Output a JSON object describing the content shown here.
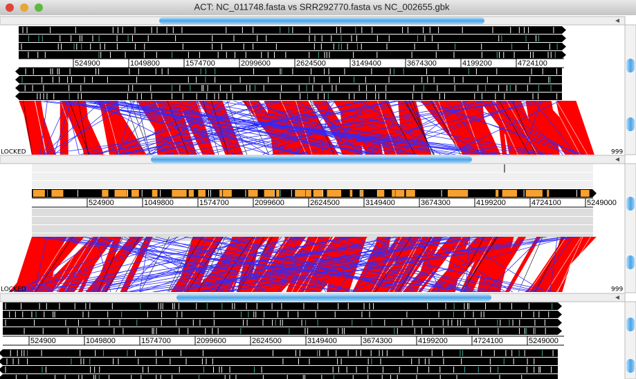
{
  "window": {
    "title": "ACT: NC_011748.fasta vs SRR292770.fasta vs NC_002655.gbk"
  },
  "sequences": [
    {
      "ruler": [
        "524900",
        "1049800",
        "1574700",
        "2099600",
        "2624500",
        "3149400",
        "3674300",
        "4199200",
        "4724100"
      ]
    },
    {
      "ruler": [
        "524900",
        "1049800",
        "1574700",
        "2099600",
        "2624500",
        "3149400",
        "3674300",
        "4199200",
        "4724100",
        "5249000"
      ]
    },
    {
      "ruler": [
        "524900",
        "1049800",
        "1574700",
        "2099600",
        "2624500",
        "3149400",
        "3674300",
        "4199200",
        "4724100",
        "5249000"
      ]
    }
  ],
  "comparisons": [
    {
      "lock": "LOCKED",
      "scale": "999"
    },
    {
      "lock": "LOCKED",
      "scale": "999"
    }
  ]
}
